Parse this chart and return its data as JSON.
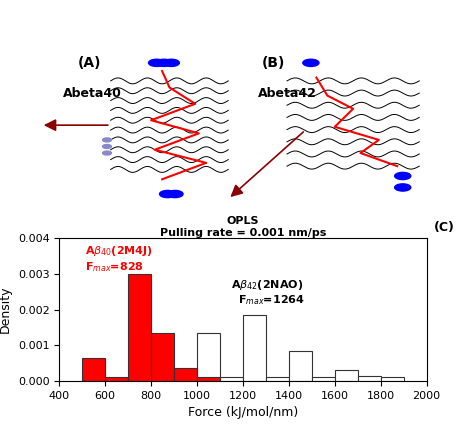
{
  "title_main": "OPLS",
  "title_sub": "Pulling rate = 0.001 nm/ps",
  "panel_label": "(C)",
  "xlabel": "Force (kJ/mol/nm)",
  "ylabel": "Density",
  "xlim": [
    400,
    2000
  ],
  "ylim": [
    0,
    0.004
  ],
  "yticks": [
    0,
    0.001,
    0.002,
    0.003,
    0.004
  ],
  "xticks": [
    400,
    600,
    800,
    1000,
    1200,
    1400,
    1600,
    1800,
    2000
  ],
  "red_bin_edges": [
    500,
    600,
    700,
    800,
    900,
    1000,
    1100
  ],
  "red_bin_heights": [
    0.00065,
    0.0001,
    0.003,
    0.00135,
    0.00035,
    0.0001
  ],
  "white_bin_edges": [
    1000,
    1100,
    1200,
    1300,
    1400,
    1500,
    1600,
    1700,
    1800,
    1900
  ],
  "white_bin_heights": [
    0.00135,
    0.0001,
    0.00185,
    0.0001,
    0.00085,
    0.0001,
    0.0003,
    0.00015,
    0.0001
  ],
  "label_red_name": "A$\\beta_{40}$(2M4J)",
  "label_red_fmax": "F$_{max}$=828",
  "label_white_name": "A$\\beta_{42}$(2NAO)",
  "label_white_fmax": "F$_{max}$=1264",
  "red_color": "#ff0000",
  "white_color": "#ffffff",
  "edge_color": "#333333",
  "panel_A_label": "(A)",
  "panel_B_label": "(B)",
  "panel_A_text": "Abeta40",
  "panel_B_text": "Abeta42",
  "bg_color": "#ffffff"
}
